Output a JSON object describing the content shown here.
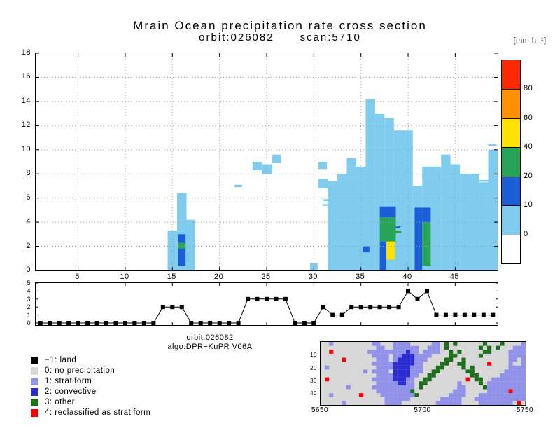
{
  "titles": {
    "main": "Mrain Ocean precipitation rate cross section",
    "sub": "orbit:026082      scan:5710"
  },
  "colorbar_unit": "[mm h⁻¹]",
  "caption": {
    "line1": "orbit:026082",
    "line2": "algo:DPR−KuPR V06A"
  },
  "palette": {
    "c1": "#7fccee",
    "c2": "#1b5ed6",
    "c3": "#28a456",
    "c4": "#ffe200",
    "c5": "#ff9000",
    "c6": "#ff2a00"
  },
  "legend": {
    "items": [
      {
        "color": "#000000",
        "label": "−1: land"
      },
      {
        "color": "#d8d8d8",
        "label": "0: no precipitation"
      },
      {
        "color": "#9191ea",
        "label": "1: stratiform"
      },
      {
        "color": "#2b2bd0",
        "label": "2: convective"
      },
      {
        "color": "#1c6e1c",
        "label": "3: other"
      },
      {
        "color": "#ff0000",
        "label": "4: reclassified as stratiform"
      }
    ]
  },
  "chart_data": [
    {
      "id": "cross_section",
      "type": "heatmap",
      "title": "Mrain Ocean precipitation rate cross section",
      "subtitle": "orbit:026082  scan:5710",
      "xlim": [
        0.5,
        49.5
      ],
      "ylim": [
        0,
        18
      ],
      "x_ticks": [
        5,
        10,
        15,
        20,
        25,
        30,
        35,
        40,
        45
      ],
      "y_ticks": [
        0,
        2,
        4,
        6,
        8,
        10,
        12,
        14,
        16,
        18
      ],
      "colorbar": {
        "labels": [
          0,
          10,
          20,
          40,
          60,
          80
        ],
        "colors_bottom_to_top": [
          "#ffffff",
          "#7fccee",
          "#1b5ed6",
          "#28a456",
          "#ffe200",
          "#ff9000",
          "#ff2a00"
        ]
      },
      "cells": [
        [
          14.5,
          15.5,
          0,
          3.3,
          "c1"
        ],
        [
          15.5,
          16.5,
          0,
          6.4,
          "c1"
        ],
        [
          16.5,
          17.4,
          0,
          4.2,
          "c1"
        ],
        [
          21.6,
          22.4,
          6.9,
          7.1,
          "c1"
        ],
        [
          23.5,
          24.5,
          8.3,
          9.0,
          "c1"
        ],
        [
          24.5,
          25.6,
          8.0,
          8.8,
          "c1"
        ],
        [
          25.6,
          26.5,
          8.9,
          9.6,
          "c1"
        ],
        [
          29.6,
          30.4,
          0,
          0.6,
          "c1"
        ],
        [
          30.5,
          31.5,
          6.8,
          7.6,
          "c1"
        ],
        [
          30.5,
          31.4,
          8.4,
          9.0,
          "c1"
        ],
        [
          30.9,
          31.5,
          5.35,
          5.5,
          "c1"
        ],
        [
          31.0,
          31.5,
          5.75,
          5.9,
          "c1"
        ],
        [
          31.5,
          32.5,
          0,
          7.4,
          "c1"
        ],
        [
          32.2,
          32.9,
          4.65,
          4.8,
          "c1"
        ],
        [
          32.5,
          33.5,
          0,
          8.0,
          "c1"
        ],
        [
          33.5,
          35.5,
          0,
          8.6,
          "c1"
        ],
        [
          33.5,
          34.5,
          8.6,
          9.3,
          "c1"
        ],
        [
          35.5,
          36.5,
          0,
          14.2,
          "c1"
        ],
        [
          36.5,
          37.5,
          0,
          13.0,
          "c1"
        ],
        [
          37.5,
          38.5,
          0,
          12.6,
          "c1"
        ],
        [
          38.5,
          40.5,
          0,
          11.6,
          "c1"
        ],
        [
          40.5,
          41.5,
          0,
          7.0,
          "c1"
        ],
        [
          41.5,
          43.5,
          0,
          8.6,
          "c1"
        ],
        [
          43.5,
          44.5,
          0,
          9.6,
          "c1"
        ],
        [
          44.5,
          45.5,
          0,
          8.8,
          "c1"
        ],
        [
          45.5,
          47.5,
          0,
          8.0,
          "c1"
        ],
        [
          47.5,
          48.5,
          0,
          7.3,
          "c1"
        ],
        [
          48.5,
          49.5,
          0,
          10.0,
          "c1"
        ],
        [
          47.5,
          48.7,
          7.35,
          7.5,
          "c1"
        ],
        [
          48.5,
          49.4,
          10.3,
          10.45,
          "c1"
        ],
        [
          15.6,
          16.4,
          0.4,
          3.0,
          "c2"
        ],
        [
          15.6,
          16.4,
          1.8,
          2.3,
          "c3"
        ],
        [
          35.2,
          35.9,
          1.5,
          2.0,
          "c2"
        ],
        [
          37.0,
          38.7,
          4.4,
          5.3,
          "c2"
        ],
        [
          37.0,
          38.7,
          2.4,
          4.4,
          "c3"
        ],
        [
          37.7,
          38.6,
          0.9,
          2.4,
          "c4"
        ],
        [
          37.0,
          37.7,
          0,
          2.4,
          "c2"
        ],
        [
          38.7,
          39.3,
          3.1,
          3.3,
          "c3"
        ],
        [
          38.7,
          39.2,
          3.5,
          3.65,
          "c2"
        ],
        [
          40.7,
          41.5,
          0,
          5.2,
          "c2"
        ],
        [
          41.5,
          42.4,
          0.4,
          4.0,
          "c3"
        ],
        [
          41.5,
          42.4,
          4.0,
          5.2,
          "c2"
        ]
      ]
    },
    {
      "id": "rain_type_profile",
      "type": "line",
      "ylim": [
        0,
        5
      ],
      "y_ticks": [
        0,
        1,
        2,
        3,
        4,
        5
      ],
      "x_ticks": [
        5,
        10,
        15,
        20,
        25,
        30,
        35,
        40,
        45
      ],
      "values": [
        0,
        0,
        0,
        0,
        0,
        0,
        0,
        0,
        0,
        0,
        0,
        0,
        0,
        2,
        2,
        2,
        0,
        0,
        0,
        0,
        0,
        0,
        3,
        3,
        3,
        3,
        3,
        0,
        0,
        0,
        2,
        1,
        1,
        2,
        2,
        2,
        2,
        2,
        2,
        4,
        3,
        4,
        1,
        1,
        1,
        1,
        1,
        1,
        1
      ]
    },
    {
      "id": "rain_classification_map",
      "type": "heatmap",
      "x_tick_labels": [
        "5650",
        "5700",
        "5750"
      ],
      "y_ticks": [
        10,
        20,
        30,
        40
      ],
      "cell_colors": {
        ".": "#d8d8d8",
        "s": "#9191ea",
        "c": "#2b2bd0",
        "o": "#1c6e1c",
        "r": "#ff0000",
        "l": "#000000"
      },
      "rows": [
        "..s.........ss...ssss.....ss.o.o......o...o....s",
        "?............ss..ssssss..sss.o.......o.o.o...sss",
        "..r........ssssssssscss.ssss..o.o.....oo....ssss",
        "............ssss.sscccssss....oo.....o......ssss",
        ".....r.......sss.sccccsss....oo..o..........ss.s",
        "............ssssscccccss....oo..oo.....r....s..s",
        ".s...........ssssccccsss...oo....o.o........ssss",
        "..........s.ssss.ccccsss..oo......oo.......sssss",
        ".............ssssccccss..oo........oo.....ssssss",
        ".r..........ssssscccss..oo........r.oo..ssssssss",
        ".............sssssccss.oo.......s....o.sssssssss",
        "......s.....ssssssssss.o........ss....osssssssss",
        ".............sssssssso.........sss.....sssssrsss",
        "..s......r....sssssssso.......ssss...sssssssssss",
        "...............ssssss.......sssss...ssssssssssss",
        ".....s.........ssss........ssssss....ssssssss.r"
      ]
    }
  ]
}
